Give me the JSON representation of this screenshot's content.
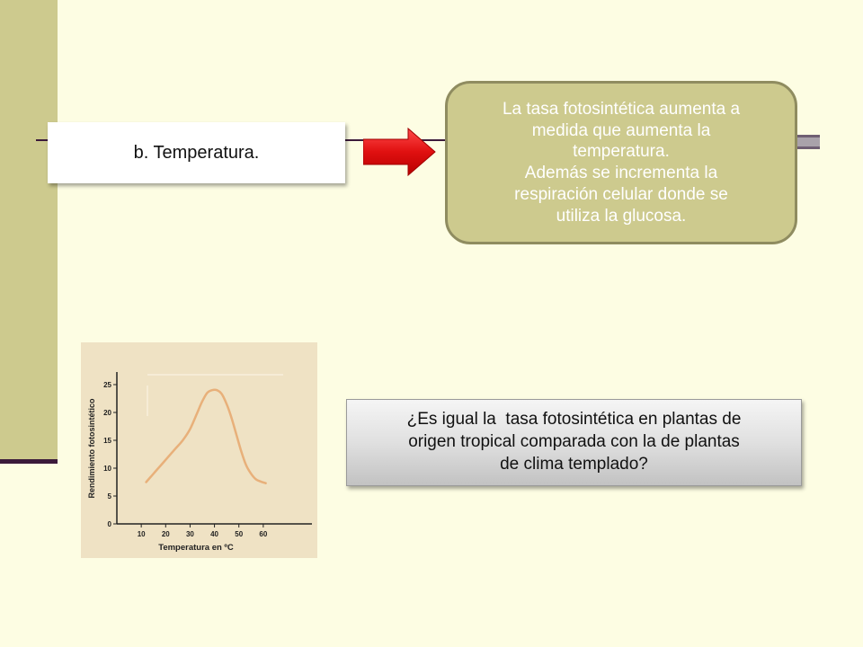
{
  "slide": {
    "colors": {
      "background": "#fdfde3",
      "accent_bar": "#cdca8e",
      "rule": "#3b1a3a",
      "arrow": "#e01010"
    },
    "topic_box": {
      "label": "b. Temperatura."
    },
    "info_box": {
      "lines": [
        "La tasa fotosintética aumenta a",
        "medida que aumenta la",
        "temperatura.",
        "Además se incrementa la",
        "respiración celular donde se",
        "utiliza la glucosa."
      ]
    },
    "question_box": {
      "lines": [
        "¿Es igual la  tasa fotosintética en plantas de",
        "origen tropical comparada con la de plantas",
        "de clima templado?"
      ]
    }
  },
  "chart_data": {
    "type": "line",
    "xlabel": "Temperatura en ºC",
    "ylabel": "Rendimiento fotosintético",
    "xlim": [
      0,
      70
    ],
    "ylim": [
      0,
      25
    ],
    "xticks": [
      10,
      20,
      30,
      40,
      50,
      60
    ],
    "yticks": [
      0,
      5,
      10,
      15,
      20,
      25
    ],
    "line_color": "#e8b07a",
    "series": [
      {
        "x": [
          12,
          15,
          18,
          21,
          24,
          27,
          30,
          33,
          35,
          37,
          39,
          41,
          43,
          45,
          47,
          49,
          51,
          53,
          55,
          57,
          59,
          61
        ],
        "y": [
          7.5,
          9,
          10.5,
          12,
          13.5,
          15,
          17,
          20,
          22,
          23.5,
          24,
          24,
          23.3,
          21.5,
          19,
          16,
          13,
          10.5,
          9,
          8,
          7.6,
          7.3
        ]
      }
    ]
  }
}
